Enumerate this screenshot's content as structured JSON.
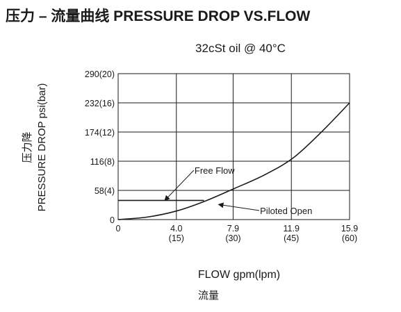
{
  "chart_data": {
    "type": "line",
    "title": "压力 – 流量曲线 PRESSURE DROP VS.FLOW",
    "subtitle": "32cSt  oil @ 40°C",
    "ylabel_cn": "压力降",
    "ylabel": "PRESSURE DROP psi(bar)",
    "xlabel": "FLOW gpm(lpm)",
    "xlabel_cn": "流量",
    "xlim": [
      0,
      15.9
    ],
    "ylim": [
      0,
      290
    ],
    "grid": true,
    "x_ticks": [
      {
        "value": 0,
        "label": "0",
        "sublabel": ""
      },
      {
        "value": 4.0,
        "label": "4.0",
        "sublabel": "(15)"
      },
      {
        "value": 7.9,
        "label": "7.9",
        "sublabel": "(30)"
      },
      {
        "value": 11.9,
        "label": "11.9",
        "sublabel": "(45)"
      },
      {
        "value": 15.9,
        "label": "15.9",
        "sublabel": "(60)"
      }
    ],
    "y_ticks": [
      {
        "value": 0,
        "label": "0"
      },
      {
        "value": 58,
        "label": "58(4)"
      },
      {
        "value": 116,
        "label": "116(8)"
      },
      {
        "value": 174,
        "label": "174(12)"
      },
      {
        "value": 232,
        "label": "232(16)"
      },
      {
        "value": 290,
        "label": "290(20)"
      }
    ],
    "series": [
      {
        "name": "Free Flow",
        "color": "#1a1a1a",
        "x": [
          0,
          5.9
        ],
        "y": [
          38,
          38
        ]
      },
      {
        "name": "Piloted Open",
        "color": "#1a1a1a",
        "x": [
          0,
          2,
          4,
          6,
          8,
          10,
          12,
          14,
          15.9
        ],
        "y": [
          0,
          5,
          17,
          37,
          62,
          88,
          122,
          175,
          232
        ]
      }
    ],
    "annotations": [
      {
        "text": "Free Flow",
        "arrow_to": {
          "x": 3.2,
          "y": 38
        },
        "text_at": {
          "x": 5.2,
          "y": 98
        }
      },
      {
        "text": "Piloted Open",
        "arrow_to": {
          "x": 6.9,
          "y": 30
        },
        "text_at": {
          "x": 9.7,
          "y": 18
        }
      }
    ]
  }
}
